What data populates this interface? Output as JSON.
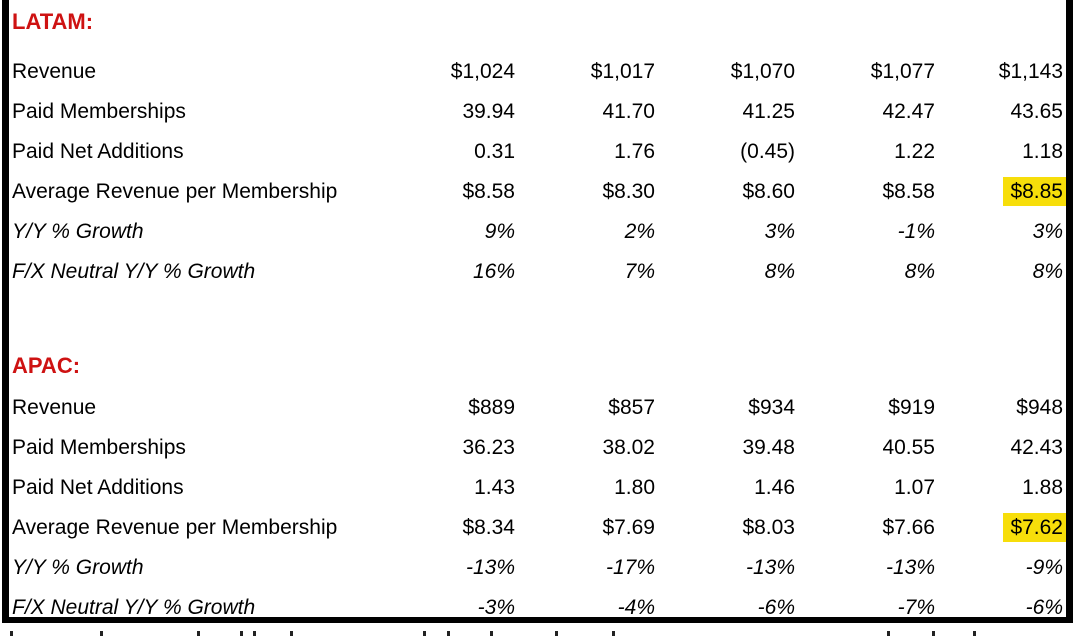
{
  "colors": {
    "section_header_red": "#ce1212",
    "highlight_yellow": "#f7de0a",
    "border_black": "#000000",
    "text_black": "#000000"
  },
  "table": {
    "columns_count": 5,
    "sections": [
      {
        "title": "LATAM:",
        "rows": [
          {
            "label": "Revenue",
            "values": [
              "$1,024",
              "$1,017",
              "$1,070",
              "$1,077",
              "$1,143"
            ],
            "italic": false,
            "highlight_last": false
          },
          {
            "label": "Paid Memberships",
            "values": [
              "39.94",
              "41.70",
              "41.25",
              "42.47",
              "43.65"
            ],
            "italic": false,
            "highlight_last": false
          },
          {
            "label": "Paid Net Additions",
            "values": [
              "0.31",
              "1.76",
              "(0.45)",
              "1.22",
              "1.18"
            ],
            "italic": false,
            "highlight_last": false
          },
          {
            "label": "Average Revenue per Membership",
            "values": [
              "$8.58",
              "$8.30",
              "$8.60",
              "$8.58",
              "$8.85"
            ],
            "italic": false,
            "highlight_last": true
          },
          {
            "label": "Y/Y % Growth",
            "values": [
              "9%",
              "2%",
              "3%",
              "-1%",
              "3%"
            ],
            "italic": true,
            "highlight_last": false
          },
          {
            "label": "F/X Neutral Y/Y % Growth",
            "values": [
              "16%",
              "7%",
              "8%",
              "8%",
              "8%"
            ],
            "italic": true,
            "highlight_last": false
          }
        ]
      },
      {
        "title": "APAC:",
        "rows": [
          {
            "label": "Revenue",
            "values": [
              "$889",
              "$857",
              "$934",
              "$919",
              "$948"
            ],
            "italic": false,
            "highlight_last": false
          },
          {
            "label": "Paid Memberships",
            "values": [
              "36.23",
              "38.02",
              "39.48",
              "40.55",
              "42.43"
            ],
            "italic": false,
            "highlight_last": false
          },
          {
            "label": "Paid Net Additions",
            "values": [
              "1.43",
              "1.80",
              "1.46",
              "1.07",
              "1.88"
            ],
            "italic": false,
            "highlight_last": false
          },
          {
            "label": "Average Revenue per Membership",
            "values": [
              "$8.34",
              "$7.69",
              "$8.03",
              "$7.66",
              "$7.62"
            ],
            "italic": false,
            "highlight_last": true
          },
          {
            "label": "Y/Y % Growth",
            "values": [
              "-13%",
              "-17%",
              "-13%",
              "-13%",
              "-9%"
            ],
            "italic": true,
            "highlight_last": false
          },
          {
            "label": "F/X Neutral Y/Y % Growth",
            "values": [
              "-3%",
              "-4%",
              "-6%",
              "-7%",
              "-6%"
            ],
            "italic": true,
            "highlight_last": false
          }
        ]
      }
    ]
  },
  "cutoff_footnote": {
    "note": "illegible footnote line cut off at bottom screenshot edge; only letter tops visible",
    "mark_x_positions": [
      10,
      100,
      197,
      240,
      253,
      290,
      423,
      447,
      490,
      555,
      612,
      887,
      932,
      973
    ]
  }
}
